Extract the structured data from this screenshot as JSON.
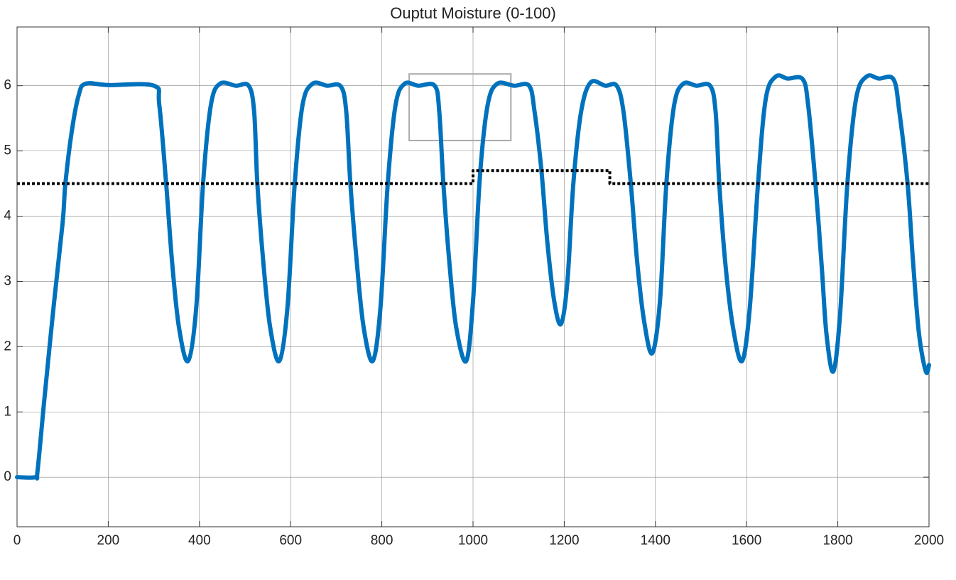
{
  "chart_data": {
    "type": "line",
    "title": "Ouptut Moisture (0-100)",
    "xlim": [
      0,
      2000
    ],
    "ylim": [
      -0.76,
      6.9
    ],
    "xticks": [
      0,
      200,
      400,
      600,
      800,
      1000,
      1200,
      1400,
      1600,
      1800,
      2000
    ],
    "yticks": [
      0,
      1,
      2,
      3,
      4,
      5,
      6
    ],
    "grid": true,
    "series": [
      {
        "color": "#0072bd",
        "style": "solid",
        "x": [
          0,
          40,
          45,
          60,
          80,
          100,
          106,
          120,
          135,
          150,
          200,
          300,
          312,
          327,
          340,
          355,
          375,
          393,
          408,
          425,
          445,
          480,
          508,
          520,
          527,
          540,
          555,
          575,
          593,
          609,
          626,
          648,
          680,
          710,
          722,
          731,
          745,
          760,
          780,
          797,
          813,
          830,
          850,
          880,
          916,
          926,
          935,
          948,
          963,
          985,
          1000,
          1015,
          1032,
          1053,
          1090,
          1123,
          1135,
          1150,
          1163,
          1178,
          1193,
          1207,
          1220,
          1237,
          1258,
          1290,
          1315,
          1330,
          1346,
          1360,
          1375,
          1393,
          1410,
          1424,
          1441,
          1461,
          1490,
          1520,
          1532,
          1540,
          1553,
          1570,
          1590,
          1607,
          1625,
          1642,
          1664,
          1690,
          1723,
          1735,
          1751,
          1765,
          1775,
          1790,
          1805,
          1821,
          1840,
          1863,
          1890,
          1922,
          1935,
          1953,
          1965,
          1978,
          1993,
          2000
        ],
        "values": [
          0,
          0,
          0.1,
          1.2,
          2.6,
          3.9,
          4.5,
          5.3,
          5.85,
          6.03,
          6.01,
          6.0,
          5.7,
          4.5,
          3.3,
          2.3,
          1.78,
          2.6,
          4.5,
          5.7,
          6.03,
          6.0,
          6.0,
          5.6,
          4.5,
          3.3,
          2.3,
          1.78,
          2.6,
          4.5,
          5.7,
          6.03,
          6.0,
          5.99,
          5.6,
          4.5,
          3.3,
          2.3,
          1.78,
          2.6,
          4.5,
          5.7,
          6.03,
          6.0,
          6.0,
          5.6,
          4.5,
          3.3,
          2.3,
          1.78,
          2.7,
          4.6,
          5.7,
          6.03,
          6.0,
          6.0,
          5.6,
          4.7,
          3.6,
          2.7,
          2.35,
          3.0,
          4.5,
          5.6,
          6.05,
          6.0,
          6.0,
          5.6,
          4.5,
          3.3,
          2.4,
          1.9,
          2.7,
          4.5,
          5.7,
          6.03,
          6.0,
          6.0,
          5.6,
          4.5,
          3.3,
          2.3,
          1.78,
          2.6,
          4.5,
          5.8,
          6.14,
          6.11,
          6.1,
          5.7,
          4.5,
          3.2,
          2.2,
          1.62,
          2.5,
          4.5,
          5.8,
          6.14,
          6.11,
          6.1,
          5.6,
          4.5,
          3.3,
          2.2,
          1.62,
          1.72
        ]
      },
      {
        "color": "#000000",
        "style": "dotted",
        "x": [
          0,
          1000,
          1000,
          1300,
          1300,
          2000
        ],
        "values": [
          4.5,
          4.5,
          4.7,
          4.7,
          4.5,
          4.5
        ]
      }
    ],
    "rectangle": {
      "x": [
        860,
        1083
      ],
      "y": [
        5.16,
        6.18
      ],
      "color": "#aaaaaa"
    }
  }
}
